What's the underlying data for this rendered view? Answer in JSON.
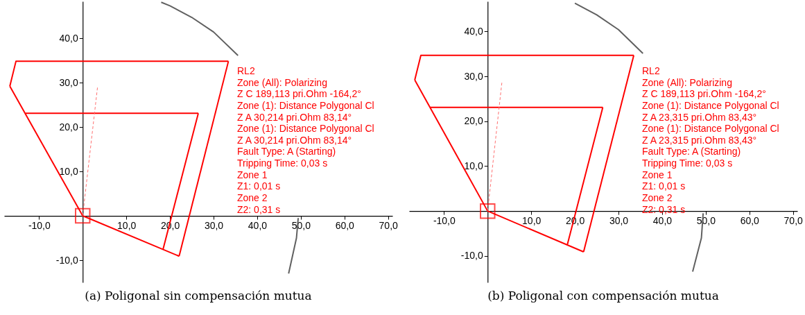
{
  "chart_data": [
    {
      "type": "line",
      "title": "(a) Poligonal sin compensación mutua",
      "xlim": [
        -18,
        71
      ],
      "ylim": [
        -15,
        48.3
      ],
      "xticks": [
        {
          "value": -10,
          "label": "-10,0"
        },
        {
          "value": 10,
          "label": "10,0"
        },
        {
          "value": 20,
          "label": "20,0"
        },
        {
          "value": 30,
          "label": "30,0"
        },
        {
          "value": 40,
          "label": "40,0"
        },
        {
          "value": 50,
          "label": "50,0"
        },
        {
          "value": 60,
          "label": "60,0"
        },
        {
          "value": 70,
          "label": "70,0"
        }
      ],
      "yticks": [
        {
          "value": -10,
          "label": "-10,0"
        },
        {
          "value": 10,
          "label": "10,0"
        },
        {
          "value": 20,
          "label": "20,0"
        },
        {
          "value": 30,
          "label": "30,0"
        },
        {
          "value": 40,
          "label": "40,0"
        }
      ],
      "annotations": [
        "RL2",
        "Zone (All): Polarizing",
        "  Z C 189,113 pri.Ohm -164,2°",
        "Zone (1): Distance Polygonal Cl",
        "  Z A 30,214 pri.Ohm 83,14°",
        "Zone (1): Distance Polygonal Cl",
        "  Z A 30,214 pri.Ohm 83,14°",
        "Fault Type: A (Starting)",
        "Tripping Time: 0,03 s",
        "Zone 1",
        "  Z1: 0,01 s",
        "Zone 2",
        "  Z2: 0,31 s"
      ],
      "series": [
        {
          "color": "#606060",
          "x": [
            18,
            20,
            25,
            30,
            35.6,
            40,
            44,
            47,
            49,
            49.4,
            49,
            47.2
          ],
          "values": [
            48.1,
            47.3,
            44.7,
            41.4,
            36.1,
            null,
            null,
            null,
            null,
            -0.5,
            -5.0,
            -13.0
          ]
        },
        {
          "color": "#ff0000",
          "x": [
            -16.7,
            -15.3,
            33.4
          ],
          "values": [
            29.2,
            34.8,
            34.8
          ]
        },
        {
          "color": "#ff0000",
          "x": [
            22.1,
            33.4
          ],
          "values": [
            -9.1,
            34.8
          ]
        },
        {
          "color": "#ff0000",
          "x": [
            -16.7,
            0,
            22.1
          ],
          "values": [
            29.2,
            0,
            -9.1
          ]
        },
        {
          "color": "#ff0000",
          "x": [
            -13.1,
            26.5
          ],
          "values": [
            23.1,
            23.1
          ]
        },
        {
          "color": "#ff0000",
          "x": [
            18.4,
            26.5
          ],
          "values": [
            -7.6,
            23.1
          ]
        },
        {
          "color": "#ff7070",
          "line_style": "dashed",
          "x": [
            0,
            3.4
          ],
          "values": [
            0,
            29.0
          ]
        },
        {
          "type": "scatter",
          "marker": "square",
          "color": "#ff0000",
          "x": [
            0
          ],
          "values": [
            0
          ]
        }
      ]
    },
    {
      "type": "line",
      "title": "(b) Poligonal con compensación mutua",
      "xlim": [
        -18,
        71
      ],
      "ylim": [
        -15.9,
        46.7
      ],
      "xticks": [
        {
          "value": -10,
          "label": "-10,0"
        },
        {
          "value": 10,
          "label": "10,0"
        },
        {
          "value": 20,
          "label": "20,0"
        },
        {
          "value": 30,
          "label": "30,0"
        },
        {
          "value": 40,
          "label": "40,0"
        },
        {
          "value": 50,
          "label": "50,0"
        },
        {
          "value": 60,
          "label": "60,0"
        },
        {
          "value": 70,
          "label": "70,0"
        }
      ],
      "yticks": [
        {
          "value": -10,
          "label": "-10,0"
        },
        {
          "value": 10,
          "label": "10,0"
        },
        {
          "value": 20,
          "label": "20,0"
        },
        {
          "value": 30,
          "label": "30,0"
        },
        {
          "value": 40,
          "label": "40,0"
        }
      ],
      "annotations": [
        "RL2",
        "Zone (All): Polarizing",
        "  Z C 189,113 pri.Ohm -164,2°",
        "Zone (1): Distance Polygonal Cl",
        "  Z A 23,315 pri.Ohm 83,43°",
        "Zone (1): Distance Polygonal Cl",
        "  Z A 23,315 pri.Ohm 83,43°",
        "Fault Type: A (Starting)",
        "Tripping Time: 0,03 s",
        "Zone 1",
        "  Z1: 0,01 s",
        "Zone 2",
        "  Z2: 0,31 s"
      ],
      "series": [
        {
          "color": "#606060",
          "x": [
            20,
            25,
            30,
            35.6,
            40,
            44,
            47,
            49,
            49.4,
            49,
            47
          ],
          "values": [
            46.3,
            43.7,
            40.4,
            35.1,
            null,
            null,
            null,
            null,
            -0.5,
            -6.0,
            -13.5
          ]
        },
        {
          "color": "#ff0000",
          "x": [
            -16.7,
            -15.3,
            33.5
          ],
          "values": [
            29.2,
            34.7,
            34.7
          ]
        },
        {
          "color": "#ff0000",
          "x": [
            22.0,
            33.5
          ],
          "values": [
            -9.1,
            34.7
          ]
        },
        {
          "color": "#ff0000",
          "x": [
            -16.7,
            0,
            22.0
          ],
          "values": [
            29.2,
            0,
            -9.1
          ]
        },
        {
          "color": "#ff0000",
          "x": [
            -13.2,
            26.4
          ],
          "values": [
            23.1,
            23.1
          ]
        },
        {
          "color": "#ff0000",
          "x": [
            18.3,
            26.4
          ],
          "values": [
            -7.4,
            23.1
          ]
        },
        {
          "color": "#ff7070",
          "line_style": "dashed",
          "x": [
            0,
            3.3
          ],
          "values": [
            0,
            28.9
          ]
        },
        {
          "type": "scatter",
          "marker": "square",
          "color": "#ff0000",
          "x": [
            0
          ],
          "values": [
            0
          ]
        }
      ]
    }
  ]
}
